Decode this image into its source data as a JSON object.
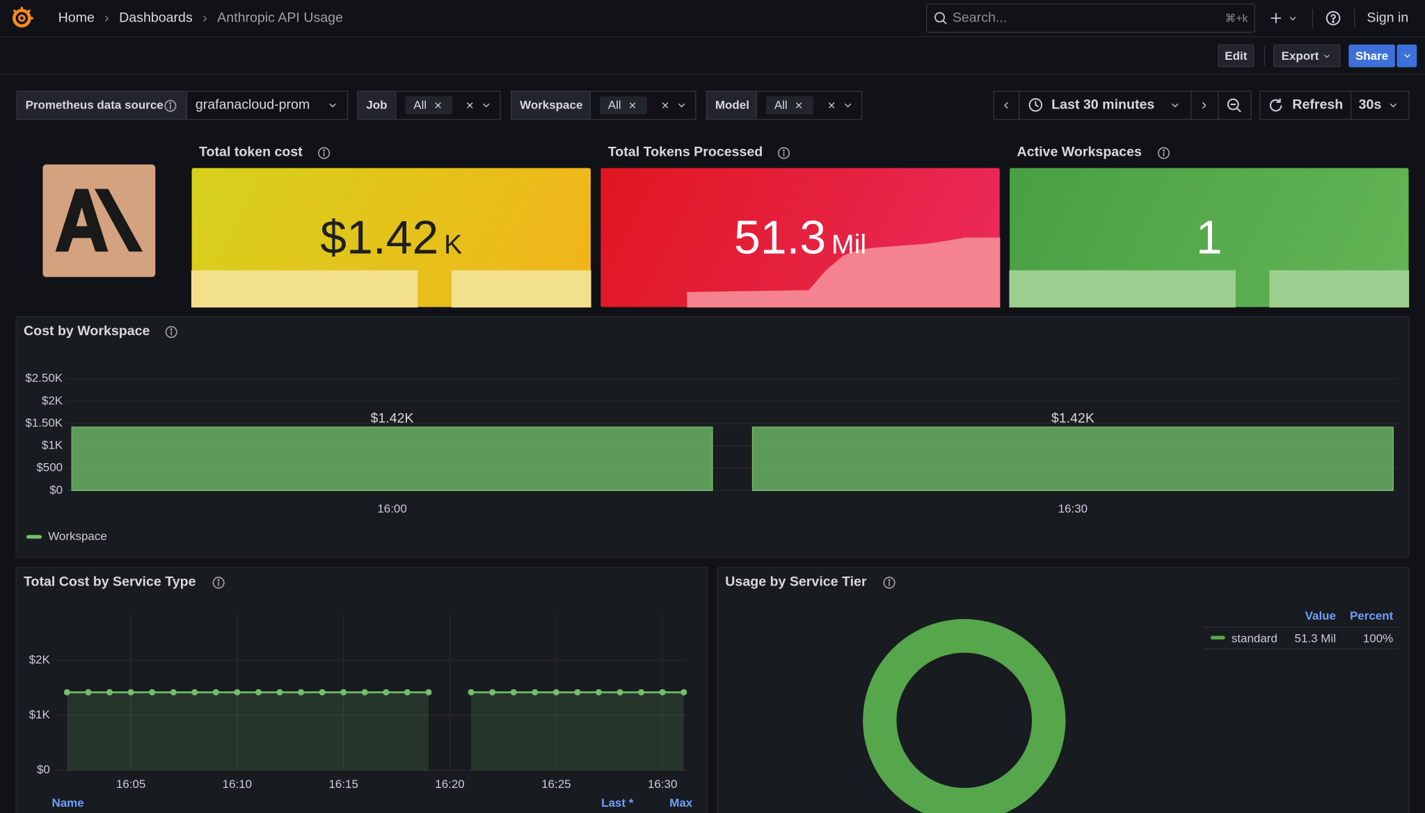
{
  "header": {
    "breadcrumbs": [
      "Home",
      "Dashboards",
      "Anthropic API Usage"
    ],
    "search_placeholder": "Search...",
    "search_shortcut": "⌘+k",
    "sign_in": "Sign in"
  },
  "toolbar": {
    "edit": "Edit",
    "export": "Export",
    "share": "Share"
  },
  "variables": [
    {
      "label": "Prometheus data source",
      "value": "grafanacloud-prom"
    },
    {
      "label": "Job",
      "value": "All"
    },
    {
      "label": "Workspace",
      "value": "All"
    },
    {
      "label": "Model",
      "value": "All"
    }
  ],
  "time_controls": {
    "range": "Last 30 minutes",
    "refresh": "Refresh",
    "interval": "30s"
  },
  "stats": [
    {
      "title": "Total token cost",
      "value": "$1.42",
      "unit": "K",
      "colors": [
        "#d6d11c",
        "#f2b419"
      ],
      "text_color": "#1f1f1f",
      "sparkline": {
        "color": "#f3e08c",
        "ylim": [
          0,
          5440
        ],
        "values": [
          1420,
          1420,
          1420,
          1420,
          1420,
          1420,
          1420,
          1420,
          1420,
          1420,
          1420,
          1420,
          1420,
          1420,
          null,
          1420,
          1420,
          1420,
          1420,
          1420,
          1420,
          1420,
          1420,
          1420
        ]
      }
    },
    {
      "title": "Total Tokens Processed",
      "value": "51.3",
      "unit": "Mil",
      "colors": [
        "#e0161f",
        "#eb2b5c"
      ],
      "text_color": "#ffffff",
      "sparkline": {
        "color": "#f5838f",
        "ylim": [
          0,
          103.3
        ],
        "values": [
          null,
          null,
          null,
          null,
          null,
          10.8,
          11,
          11.2,
          11.4,
          11.6,
          11.8,
          12,
          12.2,
          27,
          38,
          42.5,
          44,
          45,
          45.9,
          47,
          49,
          51.3,
          51.3,
          51.3
        ]
      }
    },
    {
      "title": "Active Workspaces",
      "value": "1",
      "colors": [
        "#48a043",
        "#64b556"
      ],
      "text_color": "#ffffff",
      "sparkline": {
        "color": "#9ccf8f",
        "ylim": [
          0,
          3.83
        ],
        "values": [
          1,
          1,
          1,
          1,
          1,
          1,
          1,
          1,
          1,
          1,
          1,
          1,
          1,
          1,
          null,
          1,
          1,
          1,
          1,
          1,
          1,
          1,
          1,
          1
        ]
      }
    }
  ],
  "panels": {
    "cost_by_workspace": {
      "title": "Cost by Workspace",
      "chart": {
        "type": "bar",
        "categories": [
          "16:00",
          "16:30"
        ],
        "series": [
          {
            "name": "Workspace",
            "color": "#73bf69",
            "values": [
              1420,
              1420
            ],
            "value_labels": [
              "$1.42K",
              "$1.42K"
            ]
          }
        ],
        "ylim": [
          0,
          2500
        ],
        "yticks": [
          {
            "value": 0,
            "label": "$0"
          },
          {
            "value": 500,
            "label": "$500"
          },
          {
            "value": 1000,
            "label": "$1K"
          },
          {
            "value": 1500,
            "label": "$1.50K"
          },
          {
            "value": 2000,
            "label": "$2K"
          },
          {
            "value": 2500,
            "label": "$2.50K"
          }
        ],
        "grid": true
      }
    },
    "total_cost_by_service_type": {
      "title": "Total Cost by Service Type",
      "chart": {
        "type": "line",
        "color": "#73bf69",
        "x": [
          "16:02",
          "16:03",
          "16:04",
          "16:05",
          "16:06",
          "16:07",
          "16:08",
          "16:09",
          "16:10",
          "16:11",
          "16:12",
          "16:13",
          "16:14",
          "16:15",
          "16:16",
          "16:17",
          "16:18",
          "16:19",
          "16:20",
          "16:21",
          "16:22",
          "16:23",
          "16:24",
          "16:25",
          "16:26",
          "16:27",
          "16:28",
          "16:29",
          "16:30",
          "16:31"
        ],
        "values": [
          1420,
          1420,
          1420,
          1420,
          1420,
          1420,
          1420,
          1420,
          1420,
          1420,
          1420,
          1420,
          1420,
          1420,
          1420,
          1420,
          1420,
          1420,
          null,
          1420,
          1420,
          1420,
          1420,
          1420,
          1420,
          1420,
          1420,
          1420,
          1420,
          1420
        ],
        "xlim": [
          "16:01",
          "16:32"
        ],
        "xticks": [
          "16:05",
          "16:10",
          "16:15",
          "16:20",
          "16:25",
          "16:30"
        ],
        "ylim": [
          0,
          2860
        ],
        "yticks": [
          {
            "value": 0,
            "label": "$0"
          },
          {
            "value": 1000,
            "label": "$1K"
          },
          {
            "value": 2000,
            "label": "$2K"
          }
        ],
        "grid": true,
        "legend_columns": [
          "Name",
          "Last *",
          "Max"
        ]
      }
    },
    "usage_by_service_tier": {
      "title": "Usage by Service Tier",
      "chart": {
        "type": "donut",
        "categories": [
          "standard"
        ],
        "values": [
          51.3
        ],
        "value_labels": [
          "51.3 Mil"
        ],
        "percents": [
          100
        ],
        "percent_labels": [
          "100%"
        ],
        "colors": [
          "#56a64b"
        ],
        "legend_columns": [
          "Value",
          "Percent"
        ]
      }
    }
  }
}
